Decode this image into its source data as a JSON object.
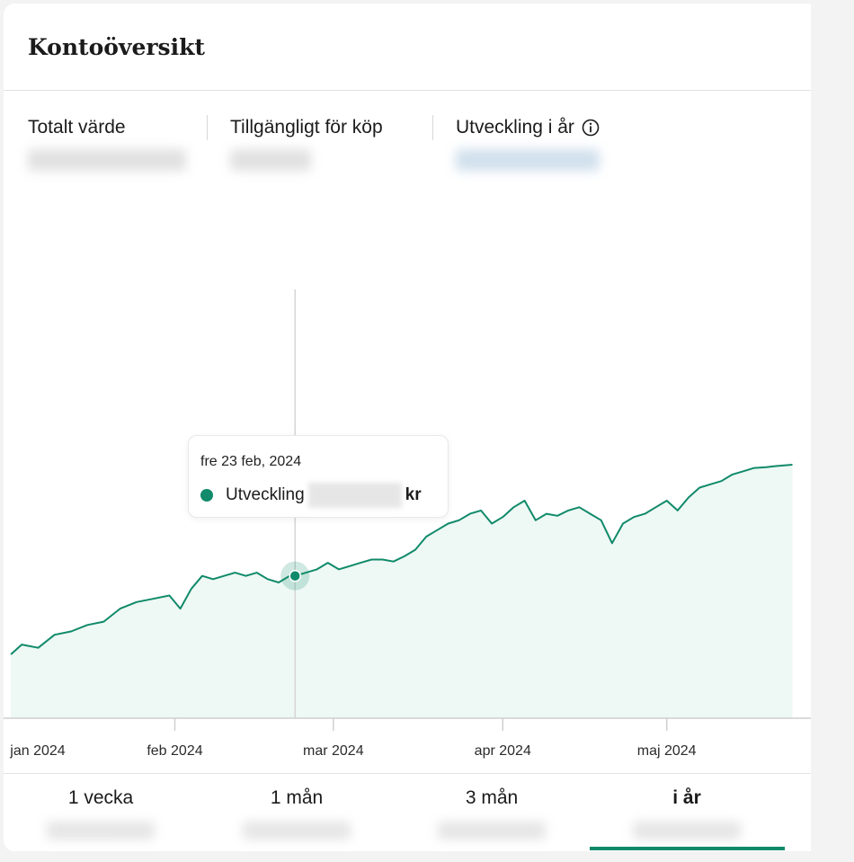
{
  "card": {
    "title": "Kontoöversikt"
  },
  "stats": [
    {
      "label": "Totalt värde"
    },
    {
      "label": "Tillgängligt för köp"
    },
    {
      "label": "Utveckling i år",
      "info_icon": "info-icon"
    }
  ],
  "tooltip": {
    "date": "fre 23 feb, 2024",
    "series_label": "Utveckling",
    "unit": "kr"
  },
  "chart_data": {
    "type": "area",
    "title": "",
    "xlabel": "",
    "ylabel": "",
    "x_ticks": [
      "jan 2024",
      "feb 2024",
      "mar 2024",
      "apr 2024",
      "maj 2024"
    ],
    "color": "#108a6a",
    "fill": "#eef8f4",
    "grid": false,
    "highlight_date": "2024-02-23",
    "series": [
      {
        "x": [
          "2024-01-02",
          "2024-01-04",
          "2024-01-07",
          "2024-01-10",
          "2024-01-13",
          "2024-01-16",
          "2024-01-19",
          "2024-01-22",
          "2024-01-25",
          "2024-01-28",
          "2024-01-31",
          "2024-02-02",
          "2024-02-04",
          "2024-02-06",
          "2024-02-08",
          "2024-02-10",
          "2024-02-12",
          "2024-02-14",
          "2024-02-16",
          "2024-02-18",
          "2024-02-20",
          "2024-02-22",
          "2024-02-23",
          "2024-02-25",
          "2024-02-27",
          "2024-02-29",
          "2024-03-02",
          "2024-03-04",
          "2024-03-06",
          "2024-03-08",
          "2024-03-10",
          "2024-03-12",
          "2024-03-14",
          "2024-03-16",
          "2024-03-18",
          "2024-03-20",
          "2024-03-22",
          "2024-03-24",
          "2024-03-26",
          "2024-03-28",
          "2024-03-30",
          "2024-04-01",
          "2024-04-03",
          "2024-04-05",
          "2024-04-07",
          "2024-04-09",
          "2024-04-11",
          "2024-04-13",
          "2024-04-15",
          "2024-04-17",
          "2024-04-19",
          "2024-04-21",
          "2024-04-23",
          "2024-04-25",
          "2024-04-27",
          "2024-04-29",
          "2024-05-01",
          "2024-05-03",
          "2024-05-05",
          "2024-05-07",
          "2024-05-09",
          "2024-05-11",
          "2024-05-13",
          "2024-05-15",
          "2024-05-17",
          "2024-05-19",
          "2024-05-21",
          "2024-05-24"
        ],
        "y": [
          100,
          101.5,
          101,
          103,
          103.5,
          104.5,
          105,
          107,
          108,
          108.5,
          109,
          107,
          110,
          112,
          111.5,
          112,
          112.5,
          112,
          112.5,
          111.5,
          111,
          112,
          112,
          112.5,
          113,
          114,
          113,
          113.5,
          114,
          114.5,
          114.5,
          114.2,
          115,
          116,
          118,
          119,
          120,
          120.5,
          121.5,
          122,
          120,
          121,
          122.5,
          123.5,
          120.5,
          121.5,
          121.2,
          122,
          122.5,
          121.5,
          120.5,
          117,
          120,
          121,
          121.5,
          122.5,
          123.5,
          122,
          124,
          125.5,
          126,
          126.5,
          127.5,
          128,
          128.5,
          128.6,
          128.8,
          129
        ]
      }
    ]
  },
  "periods": [
    {
      "label": "1 vecka"
    },
    {
      "label": "1 mån"
    },
    {
      "label": "3 mån"
    },
    {
      "label": "i år",
      "active": true
    }
  ]
}
